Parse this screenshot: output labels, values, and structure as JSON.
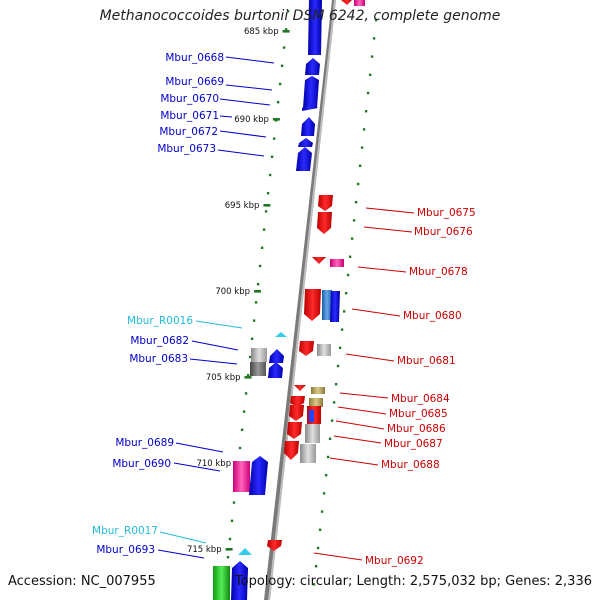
{
  "title": "Methanococcoides burtonii DSM 6242, complete genome",
  "footer": {
    "accession": "Accession: NC_007955",
    "summary": "Topology: circular; Length: 2,575,032 bp; Genes: 2,336"
  },
  "colors": {
    "forward_label": "#0000cc",
    "reverse_label": "#cc0000",
    "rna_label": "#22bbdd",
    "ruler_tick": "#227722",
    "backbone": "#808080"
  },
  "ruler": [
    {
      "label": "685 kbp"
    },
    {
      "label": "690 kbp"
    },
    {
      "label": "695 kbp"
    },
    {
      "label": "700 kbp"
    },
    {
      "label": "705 kbp"
    },
    {
      "label": "710 kbp"
    },
    {
      "label": "715 kbp"
    }
  ],
  "genes_forward": [
    {
      "name": "Mbur_0668"
    },
    {
      "name": "Mbur_0669"
    },
    {
      "name": "Mbur_0670"
    },
    {
      "name": "Mbur_0671"
    },
    {
      "name": "Mbur_0672"
    },
    {
      "name": "Mbur_0673"
    },
    {
      "name": "Mbur_R0016",
      "rna": true
    },
    {
      "name": "Mbur_0682"
    },
    {
      "name": "Mbur_0683"
    },
    {
      "name": "Mbur_0689"
    },
    {
      "name": "Mbur_0690"
    },
    {
      "name": "Mbur_R0017",
      "rna": true
    },
    {
      "name": "Mbur_0693"
    }
  ],
  "genes_reverse": [
    {
      "name": "Mbur_0675"
    },
    {
      "name": "Mbur_0676"
    },
    {
      "name": "Mbur_0678"
    },
    {
      "name": "Mbur_0680"
    },
    {
      "name": "Mbur_0681"
    },
    {
      "name": "Mbur_0684"
    },
    {
      "name": "Mbur_0685"
    },
    {
      "name": "Mbur_0686"
    },
    {
      "name": "Mbur_0687"
    },
    {
      "name": "Mbur_0688"
    },
    {
      "name": "Mbur_0692"
    }
  ]
}
